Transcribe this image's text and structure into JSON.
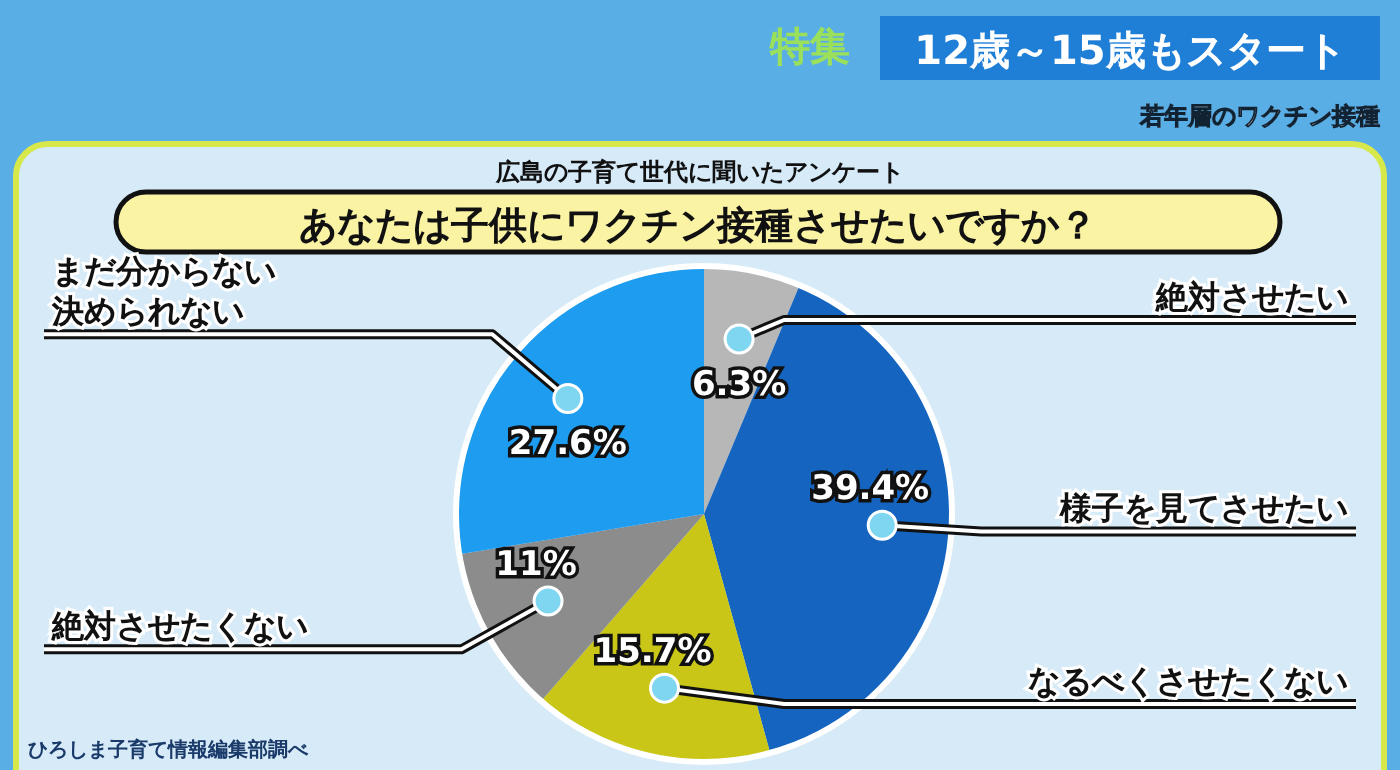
{
  "chart_data": {
    "type": "pie",
    "title": "あなたは子供にワクチン接種させたいですか？",
    "subtitle": "広島の子育て世代に聞いたアンケート",
    "categories": [
      "絶対させたい",
      "様子を見てさせたい",
      "なるべくさせたくない",
      "絶対させたくない",
      "まだ分からない決められない"
    ],
    "values": [
      6.3,
      39.4,
      15.7,
      11,
      27.6
    ],
    "colors": [
      "#b7b7b7",
      "#1565c0",
      "#c9c617",
      "#8c8c8c",
      "#1e9cf0"
    ],
    "value_labels": [
      "6.3%",
      "39.4%",
      "15.7%",
      "11%",
      "27.6%"
    ],
    "annotations": [
      "特集",
      "12歳～15歳もスタート",
      "若年層のワクチン接種",
      "ひろしま子育て情報編集部調べ"
    ]
  }
}
